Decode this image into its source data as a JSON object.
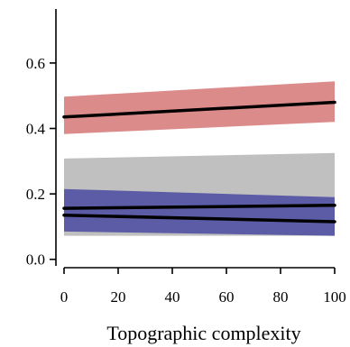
{
  "chart_data": {
    "type": "line",
    "title": "",
    "xlabel": "Topographic complexity",
    "ylabel": "",
    "xlim": [
      -3,
      103
    ],
    "ylim": [
      -0.02,
      0.765
    ],
    "xticks": [
      0,
      20,
      40,
      60,
      80,
      100
    ],
    "xtick_labels": [
      "0",
      "20",
      "40",
      "60",
      "80",
      "100"
    ],
    "yticks": [
      0.0,
      0.2,
      0.4,
      0.6
    ],
    "ytick_labels": [
      "0.0",
      "0.2",
      "0.4",
      "0.6"
    ],
    "grid": false,
    "legend": "none",
    "series": [
      {
        "color": "#dc8b8b",
        "line_color": "#000000",
        "x": [
          0,
          100
        ],
        "values": [
          0.435,
          0.48
        ],
        "lower": [
          0.383,
          0.42
        ],
        "upper": [
          0.497,
          0.544
        ]
      },
      {
        "color": "#c0c0c0",
        "line_color": "#000000",
        "x": [
          0,
          100
        ],
        "values": [
          0.135,
          0.115
        ],
        "lower": [
          0.072,
          0.072
        ],
        "upper": [
          0.308,
          0.325
        ]
      },
      {
        "color": "#5c5ca6",
        "line_color": "#000000",
        "x": [
          0,
          100
        ],
        "values": [
          0.156,
          0.165
        ],
        "lower": [
          0.085,
          0.072
        ],
        "upper": [
          0.215,
          0.19
        ]
      }
    ]
  }
}
